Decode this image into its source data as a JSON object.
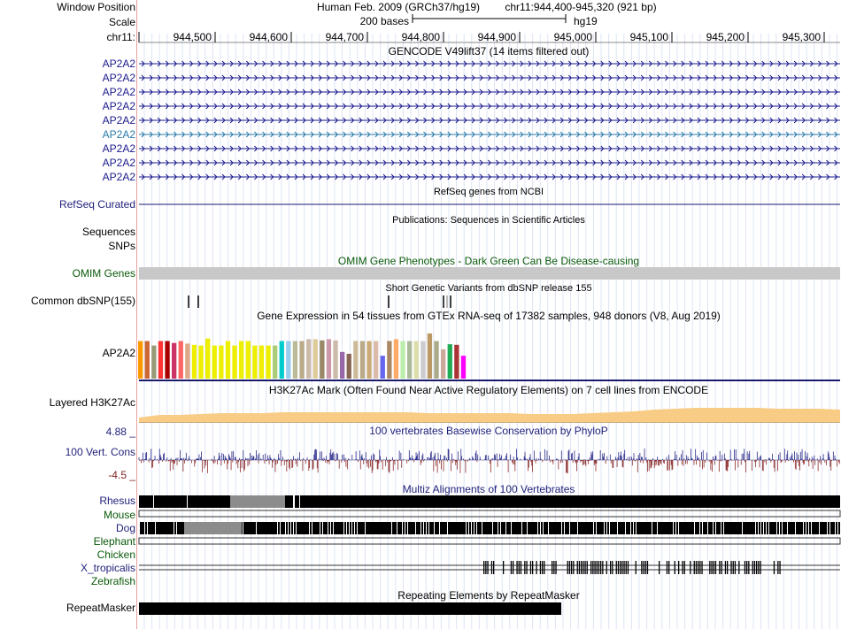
{
  "header": {
    "window_position_label": "Window Position",
    "assembly_text": "Human Feb. 2009 (GRCh37/hg19)",
    "position_text": "chr11:944,400-945,320 (921 bp)",
    "scale_label": "Scale",
    "scale_bar_text": "200 bases",
    "db_text": "hg19",
    "chrom_label": "chr11:",
    "ruler_ticks": [
      "944,500",
      "944,600",
      "944,700",
      "944,800",
      "944,900",
      "945,000",
      "945,100",
      "945,200",
      "945,300"
    ]
  },
  "gencode": {
    "title": "GENCODE V49lift37 (14 items filtered out)",
    "items": [
      "AP2A2",
      "AP2A2",
      "AP2A2",
      "AP2A2",
      "AP2A2",
      "AP2A2",
      "AP2A2",
      "AP2A2",
      "AP2A2"
    ],
    "highlight_index": 5,
    "colors": {
      "normal": "#1a1a8c",
      "highlight": "#2a7aa8"
    }
  },
  "refseq": {
    "title": "RefSeq genes from NCBI",
    "label": "RefSeq Curated"
  },
  "publications": {
    "title": "Publications: Sequences in Scientific Articles",
    "labels": [
      "Sequences",
      "SNPs"
    ]
  },
  "omim": {
    "title": "OMIM Gene Phenotypes - Dark Green Can Be Disease-causing",
    "label": "OMIM Genes"
  },
  "dbsnp": {
    "title": "Short Genetic Variants from dbSNP release 155",
    "label": "Common dbSNP(155)"
  },
  "gtex": {
    "title": "Gene Expression in 54 tissues from GTEx RNA-seq of 17382 samples, 948 donors (V8, Aug 2019)",
    "label": "AP2A2",
    "bar_colors": [
      "#ff9900",
      "#cc6633",
      "#999977",
      "#ff3333",
      "#aa0000",
      "#cc3366",
      "#ff6666",
      "#ddaa88",
      "#eeee00",
      "#eeee00",
      "#eeee00",
      "#eeee00",
      "#eeee00",
      "#eeee00",
      "#eeee00",
      "#eeee00",
      "#eeee00",
      "#eeee00",
      "#eeee00",
      "#eeee00",
      "#aacc77",
      "#00cccc",
      "#99ccee",
      "#bbbb99",
      "#bbaa88",
      "#ccbbaa",
      "#ddcc99",
      "#998866",
      "#cc99aa",
      "#ccbbaa",
      "#9966aa",
      "#886655",
      "#ccbb99",
      "#bbaa88",
      "#ccaa77",
      "#ddbbaa",
      "#6666ee",
      "#aa8866",
      "#ffaa66",
      "#bbeeaa",
      "#aabb99",
      "#ddddaa",
      "#cccccc",
      "#bb9966",
      "#aaaa88",
      "#ccaa99",
      "#22aa55",
      "#aa3333",
      "#ff00ff"
    ],
    "bar_values": [
      0.59,
      0.59,
      0.52,
      0.59,
      0.59,
      0.56,
      0.59,
      0.55,
      0.53,
      0.52,
      0.63,
      0.52,
      0.52,
      0.59,
      0.52,
      0.59,
      0.59,
      0.52,
      0.52,
      0.52,
      0.52,
      0.59,
      0.59,
      0.59,
      0.59,
      0.62,
      0.62,
      0.6,
      0.62,
      0.6,
      0.42,
      0.39,
      0.59,
      0.59,
      0.59,
      0.59,
      0.36,
      0.59,
      0.62,
      0.59,
      0.59,
      0.59,
      0.59,
      0.71,
      0.59,
      0.46,
      0.54,
      0.53,
      0.36
    ]
  },
  "h3k27ac": {
    "title": "H3K27Ac Mark (Often Found Near Active Regulatory Elements) on 7 cell lines from ENCODE",
    "label": "Layered H3K27Ac"
  },
  "phylop": {
    "title": "100 vertebrates Basewise Conservation by PhyloP",
    "label": "100 Vert. Cons",
    "max_label": "4.88 _",
    "min_label": "-4.5 _",
    "max_value": 4.88,
    "min_value": -4.5
  },
  "multiz": {
    "title": "Multiz Alignments of 100 Vertebrates",
    "species": [
      {
        "name": "Rhesus",
        "color": "navy"
      },
      {
        "name": "Mouse",
        "color": "green"
      },
      {
        "name": "Dog",
        "color": "navy"
      },
      {
        "name": "Elephant",
        "color": "green"
      },
      {
        "name": "Chicken",
        "color": "green"
      },
      {
        "name": "X_tropicalis",
        "color": "navy"
      },
      {
        "name": "Zebrafish",
        "color": "green"
      }
    ]
  },
  "repeatmasker": {
    "title": "Repeating Elements by RepeatMasker",
    "label": "RepeatMasker"
  }
}
